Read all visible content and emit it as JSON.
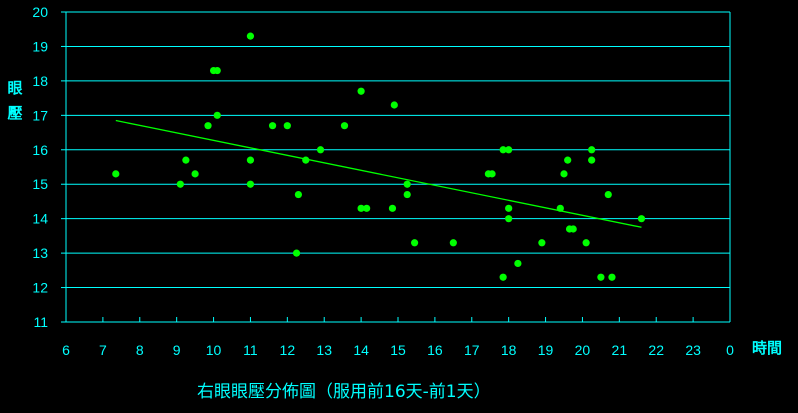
{
  "colors": {
    "background": "#000000",
    "axis": "#00ffff",
    "grid": "#00ffff",
    "points": "#00ff00",
    "trendline": "#00ff00",
    "text": "#00ffff"
  },
  "chart_data": {
    "type": "scatter",
    "title": "右眼眼壓分佈圖（服用前16天-前1天）",
    "xlabel": "時間",
    "ylabel": "眼壓",
    "xlim": [
      6,
      24
    ],
    "ylim": [
      11,
      20
    ],
    "x_ticks": [
      "6",
      "7",
      "8",
      "9",
      "10",
      "11",
      "12",
      "13",
      "14",
      "15",
      "16",
      "17",
      "18",
      "19",
      "20",
      "21",
      "22",
      "23",
      "0"
    ],
    "y_ticks": [
      "11",
      "12",
      "13",
      "14",
      "15",
      "16",
      "17",
      "18",
      "19",
      "20"
    ],
    "grid": "horizontal",
    "trendline": {
      "x": [
        7.35,
        21.6
      ],
      "y": [
        16.85,
        13.75
      ]
    },
    "points": [
      [
        7.35,
        15.3
      ],
      [
        9.1,
        15.0
      ],
      [
        9.25,
        15.7
      ],
      [
        9.5,
        15.3
      ],
      [
        9.85,
        16.7
      ],
      [
        10.0,
        18.3
      ],
      [
        10.1,
        18.3
      ],
      [
        10.1,
        17.0
      ],
      [
        11.0,
        19.3
      ],
      [
        11.0,
        15.7
      ],
      [
        11.0,
        15.0
      ],
      [
        11.6,
        16.7
      ],
      [
        12.0,
        16.7
      ],
      [
        12.5,
        15.7
      ],
      [
        12.3,
        14.7
      ],
      [
        12.25,
        13.0
      ],
      [
        12.9,
        16.0
      ],
      [
        13.55,
        16.7
      ],
      [
        14.0,
        17.7
      ],
      [
        14.0,
        14.3
      ],
      [
        14.15,
        14.3
      ],
      [
        14.9,
        17.3
      ],
      [
        14.85,
        14.3
      ],
      [
        15.25,
        15.0
      ],
      [
        15.25,
        14.7
      ],
      [
        15.45,
        13.3
      ],
      [
        16.5,
        13.3
      ],
      [
        17.45,
        15.3
      ],
      [
        17.55,
        15.3
      ],
      [
        17.85,
        16.0
      ],
      [
        18.0,
        16.0
      ],
      [
        18.0,
        14.3
      ],
      [
        18.0,
        14.0
      ],
      [
        17.85,
        12.3
      ],
      [
        18.25,
        12.7
      ],
      [
        18.9,
        13.3
      ],
      [
        19.4,
        14.3
      ],
      [
        19.5,
        15.3
      ],
      [
        19.6,
        15.7
      ],
      [
        19.65,
        13.7
      ],
      [
        19.75,
        13.7
      ],
      [
        20.1,
        13.3
      ],
      [
        20.25,
        16.0
      ],
      [
        20.25,
        15.7
      ],
      [
        20.5,
        12.3
      ],
      [
        20.7,
        14.7
      ],
      [
        20.8,
        12.3
      ],
      [
        21.6,
        14.0
      ]
    ]
  }
}
